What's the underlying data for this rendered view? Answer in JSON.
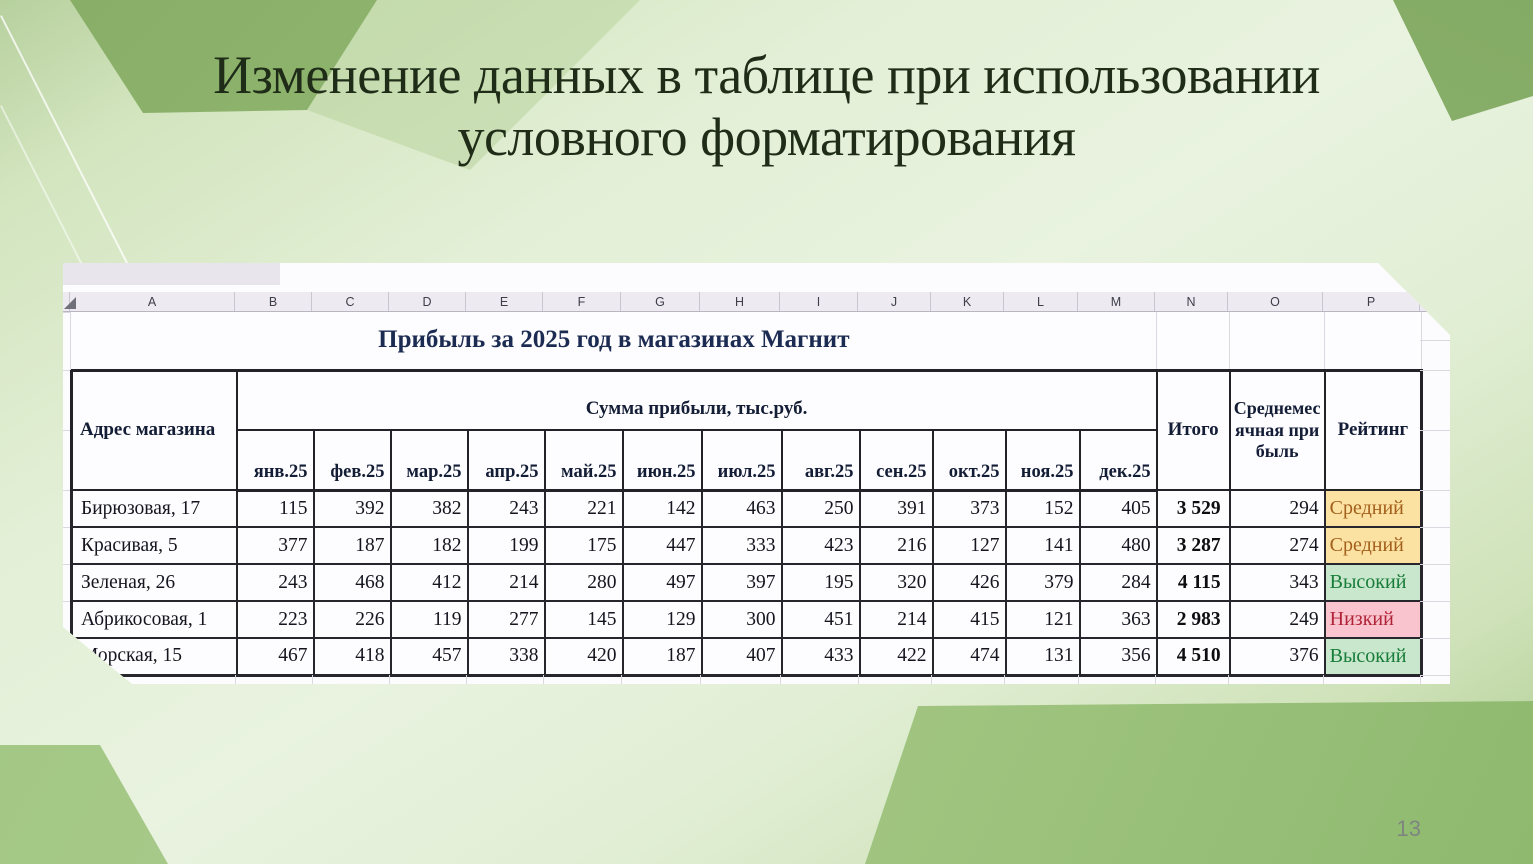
{
  "slide": {
    "title_line1": "Изменение данных в таблице при использовании",
    "title_line2": "условного форматирования",
    "page_number": "13"
  },
  "spreadsheet": {
    "column_letters": [
      "A",
      "B",
      "C",
      "D",
      "E",
      "F",
      "G",
      "H",
      "I",
      "J",
      "K",
      "L",
      "M",
      "N",
      "O",
      "P"
    ],
    "table_title": "Прибыль за 2025 год в магазинах Магнит",
    "headers": {
      "address": "Адрес магазина",
      "sum_band": "Сумма прибыли, тыс.руб.",
      "months": [
        "янв.25",
        "фев.25",
        "мар.25",
        "апр.25",
        "май.25",
        "июн.25",
        "июл.25",
        "авг.25",
        "сен.25",
        "окт.25",
        "ноя.25",
        "дек.25"
      ],
      "total": "Итого",
      "avg": "Среднемесячная прибыль",
      "rating": "Рейтинг"
    },
    "rows": [
      {
        "name": "Бирюзовая, 17",
        "values": [
          115,
          392,
          382,
          243,
          221,
          142,
          463,
          250,
          391,
          373,
          152,
          405
        ],
        "total": "3 529",
        "avg": 294,
        "rating": "Средний",
        "rating_level": "mid"
      },
      {
        "name": "Красивая, 5",
        "values": [
          377,
          187,
          182,
          199,
          175,
          447,
          333,
          423,
          216,
          127,
          141,
          480
        ],
        "total": "3 287",
        "avg": 274,
        "rating": "Средний",
        "rating_level": "mid"
      },
      {
        "name": "Зеленая, 26",
        "values": [
          243,
          468,
          412,
          214,
          280,
          497,
          397,
          195,
          320,
          426,
          379,
          284
        ],
        "total": "4 115",
        "avg": 343,
        "rating": "Высокий",
        "rating_level": "high"
      },
      {
        "name": "Абрикосовая, 1",
        "values": [
          223,
          226,
          119,
          277,
          145,
          129,
          300,
          451,
          214,
          415,
          121,
          363
        ],
        "total": "2 983",
        "avg": 249,
        "rating": "Низкий",
        "rating_level": "low"
      },
      {
        "name": "Морская, 15",
        "values": [
          467,
          418,
          457,
          338,
          420,
          187,
          407,
          433,
          422,
          474,
          131,
          356
        ],
        "total": "4 510",
        "avg": 376,
        "rating": "Высокий",
        "rating_level": "high"
      }
    ],
    "rating_colors": {
      "mid": {
        "bg": "#fce2a2",
        "fg": "#a3601c"
      },
      "high": {
        "bg": "#c9e7cd",
        "fg": "#177c38"
      },
      "low": {
        "bg": "#f9c4ce",
        "fg": "#b02438"
      }
    },
    "header_colors": {
      "blue": "#b9cfeb",
      "yellow": "#fce3a2"
    }
  }
}
